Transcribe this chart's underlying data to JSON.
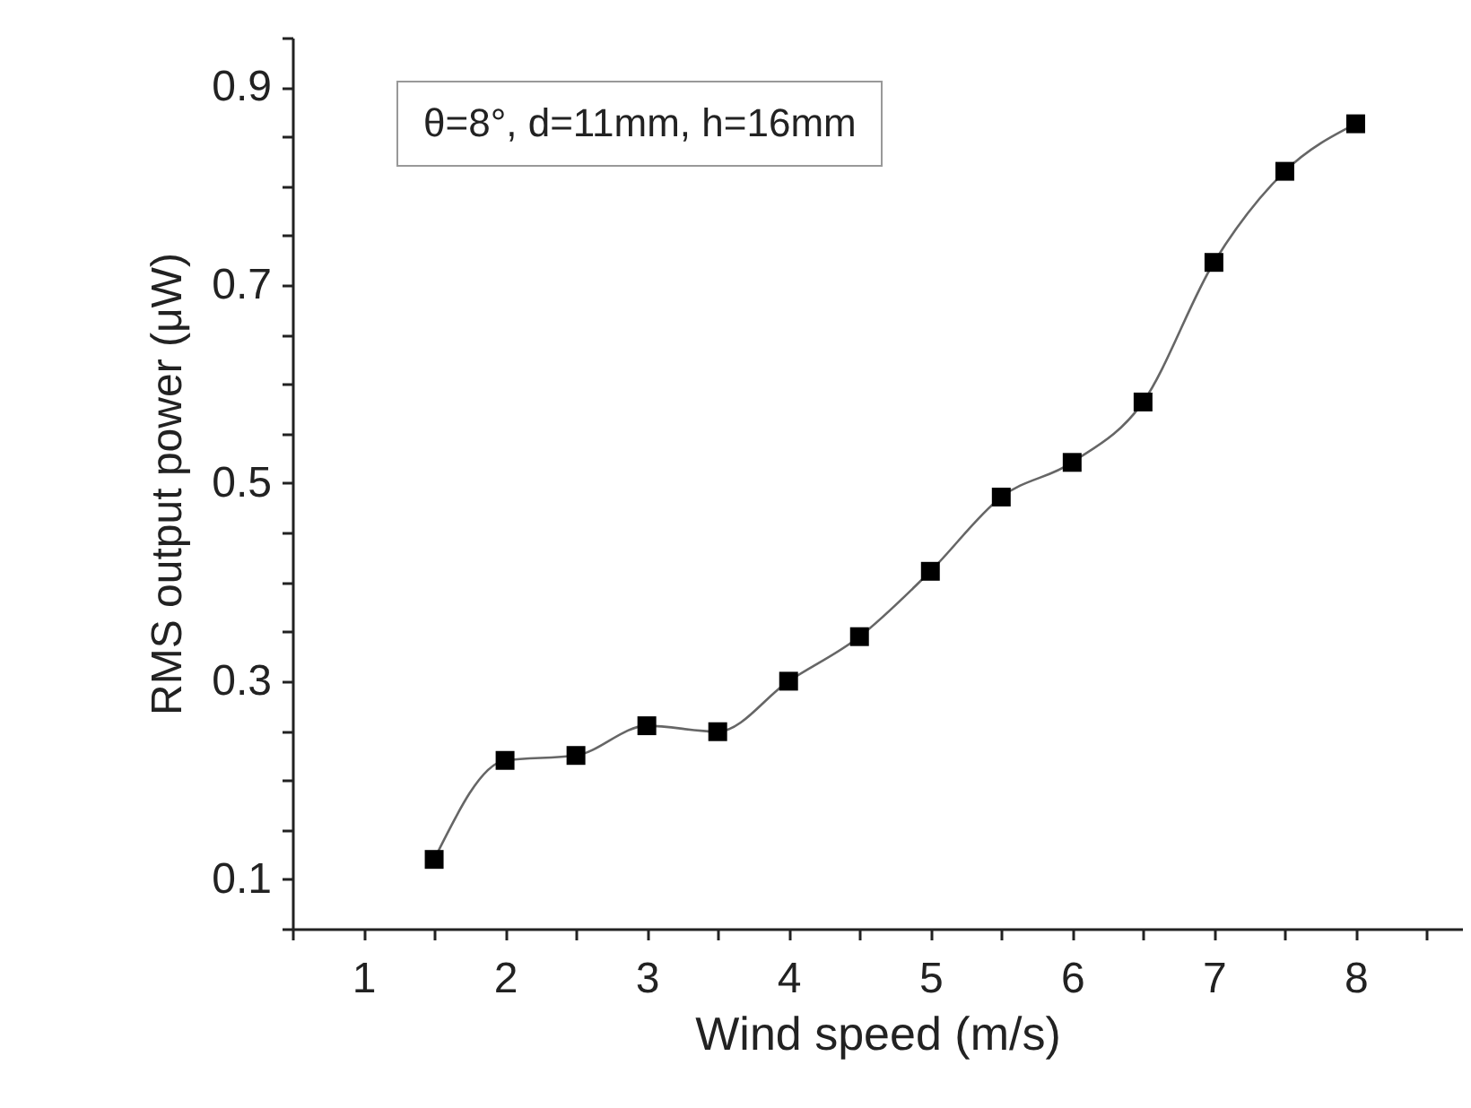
{
  "chart_data": {
    "type": "line",
    "xlabel": "Wind speed (m/s)",
    "ylabel": "RMS output power (μW)",
    "annotations": [
      "θ=8°, d=11mm, h=16mm"
    ],
    "x": [
      1.5,
      2,
      2.5,
      3,
      3.5,
      4,
      4.5,
      5,
      5.5,
      6,
      6.5,
      7,
      7.5,
      8
    ],
    "series": [
      {
        "color": "#000000",
        "values": [
          0.12,
          0.22,
          0.225,
          0.255,
          0.249,
          0.3,
          0.345,
          0.411,
          0.486,
          0.521,
          0.582,
          0.723,
          0.815,
          0.863
        ]
      }
    ],
    "xlim": [
      0.5,
      8.75
    ],
    "xticks": [
      {
        "value": 0.5,
        "label": null
      },
      1,
      {
        "value": 1.5,
        "label": null
      },
      2,
      {
        "value": 2.5,
        "label": null
      },
      3,
      {
        "value": 3.5,
        "label": null
      },
      4,
      {
        "value": 4.5,
        "label": null
      },
      5,
      {
        "value": 5.5,
        "label": null
      },
      6,
      {
        "value": 6.5,
        "label": null
      },
      7,
      {
        "value": 7.5,
        "label": null
      },
      8,
      {
        "value": 8.5,
        "label": null
      }
    ],
    "ylim": [
      0.05,
      0.95
    ],
    "yticks": [
      {
        "value": 0.05,
        "label": null
      },
      0.1,
      {
        "value": 0.15,
        "label": null
      },
      {
        "value": 0.2,
        "label": null
      },
      {
        "value": 0.25,
        "label": null
      },
      0.3,
      {
        "value": 0.35,
        "label": null
      },
      {
        "value": 0.4,
        "label": null
      },
      {
        "value": 0.45,
        "label": null
      },
      0.5,
      {
        "value": 0.55,
        "label": null
      },
      {
        "value": 0.6,
        "label": null
      },
      {
        "value": 0.65,
        "label": null
      },
      0.7,
      {
        "value": 0.75,
        "label": null
      },
      {
        "value": 0.8,
        "label": null
      },
      {
        "value": 0.85,
        "label": null
      },
      0.9,
      {
        "value": 0.95,
        "label": null
      }
    ],
    "grid": false,
    "marker": "square",
    "line_style": "solid"
  }
}
